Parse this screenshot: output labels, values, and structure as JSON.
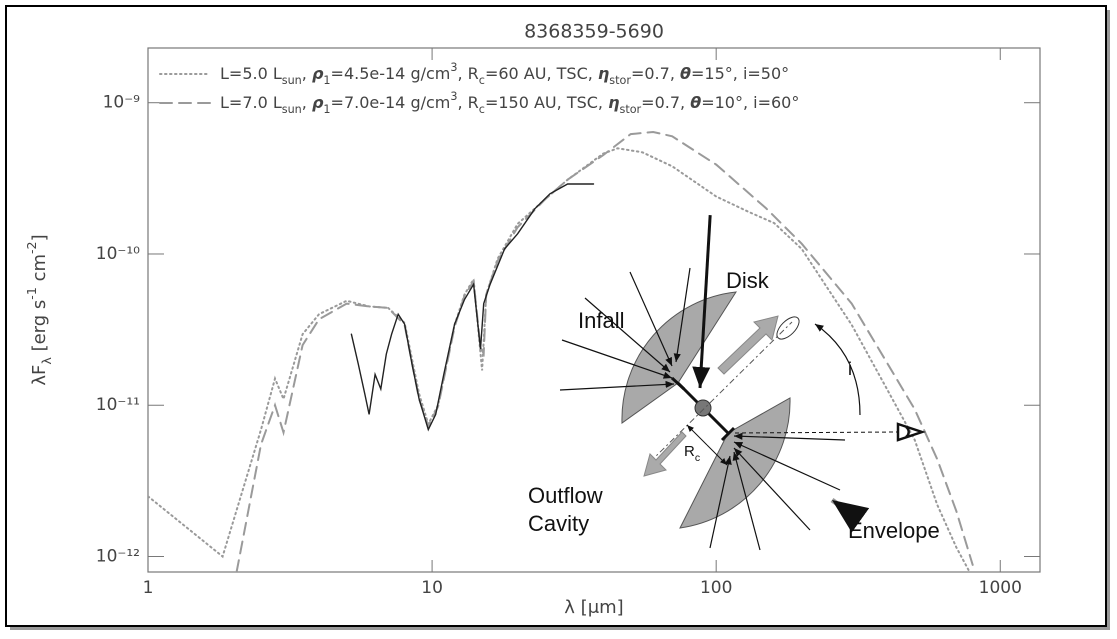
{
  "chart_data": {
    "type": "line",
    "title": "8368359-5690",
    "xlabel": "λ [μm]",
    "ylabel": [
      {
        "t": "λF"
      },
      {
        "t": "λ",
        "s": "sub"
      },
      {
        "t": " [erg s"
      },
      {
        "t": "-1",
        "s": "sup"
      },
      {
        "t": " cm"
      },
      {
        "t": "-2",
        "s": "sup"
      },
      {
        "t": "]"
      }
    ],
    "xscale": "log",
    "yscale": "log",
    "xlim": [
      1,
      1380
    ],
    "ylim": [
      7.9e-13,
      2.3e-09
    ],
    "xticks": [
      1,
      10,
      100,
      1000
    ],
    "yticks": [
      {
        "value": 1e-12,
        "label": "10⁻¹²"
      },
      {
        "value": 1e-11,
        "label": "10⁻¹¹"
      },
      {
        "value": 1e-10,
        "label": "10⁻¹⁰"
      },
      {
        "value": 1e-09,
        "label": "10⁻⁹"
      }
    ],
    "legend": "top-left",
    "series": [
      {
        "name": [
          {
            "t": "L=5.0 L"
          },
          {
            "t": "sun",
            "s": "sub"
          },
          {
            "t": ", "
          },
          {
            "t": "ρ",
            "s": "greek"
          },
          {
            "t": "1",
            "s": "sub"
          },
          {
            "t": "=4.5e-14 g/cm"
          },
          {
            "t": "3",
            "s": "sup"
          },
          {
            "t": ", R"
          },
          {
            "t": "c",
            "s": "sub"
          },
          {
            "t": "=60 AU, TSC, "
          },
          {
            "t": "η",
            "s": "greek"
          },
          {
            "t": "stor",
            "s": "sub"
          },
          {
            "t": "=0.7, "
          },
          {
            "t": "θ",
            "s": "greek"
          },
          {
            "t": "=15°, i=50°"
          }
        ],
        "color": "#9a9a9a",
        "dash": "dotted",
        "legend": true,
        "x": [
          1,
          1.83,
          2.5,
          2.8,
          3,
          3.5,
          4,
          5,
          6,
          7,
          8,
          9,
          9.7,
          10.5,
          12,
          13,
          14,
          14.8,
          15,
          15.5,
          17,
          20,
          25,
          30,
          40,
          45,
          55,
          70,
          100,
          130,
          160,
          200,
          300,
          400,
          500,
          600,
          700,
          780
        ],
        "values": [
          2.5e-12,
          1e-12,
          6.9e-12,
          1.5e-11,
          1.1e-11,
          2.95e-11,
          4e-11,
          4.9e-11,
          4.5e-11,
          4.4e-11,
          3.5e-11,
          1.19e-11,
          7.5e-12,
          1e-11,
          3.4e-11,
          5.4e-11,
          6.8e-11,
          2.2e-11,
          1.7e-11,
          5.4e-11,
          9.3e-11,
          1.58e-10,
          2.3e-10,
          3.1e-10,
          4.6e-10,
          5e-10,
          4.7e-10,
          3.8e-10,
          2.4e-10,
          1.9e-10,
          1.6e-10,
          1.08e-10,
          3.4e-11,
          1.27e-11,
          5.9e-12,
          2.2e-12,
          1.15e-12,
          7.9e-13
        ]
      },
      {
        "name": [
          {
            "t": "L=7.0 L"
          },
          {
            "t": "sun",
            "s": "sub"
          },
          {
            "t": ", "
          },
          {
            "t": "ρ",
            "s": "greek"
          },
          {
            "t": "1",
            "s": "sub"
          },
          {
            "t": "=7.0e-14 g/cm"
          },
          {
            "t": "3",
            "s": "sup"
          },
          {
            "t": ", R"
          },
          {
            "t": "c",
            "s": "sub"
          },
          {
            "t": "=150 AU, TSC, "
          },
          {
            "t": "η",
            "s": "greek"
          },
          {
            "t": "stor",
            "s": "sub"
          },
          {
            "t": "=0.7, "
          },
          {
            "t": "θ",
            "s": "greek"
          },
          {
            "t": "=10°, i=60°"
          }
        ],
        "color": "#9a9a9a",
        "dash": "dashed",
        "legend": true,
        "x": [
          2.05,
          2.5,
          2.8,
          3,
          3.5,
          4,
          5,
          6,
          7,
          8,
          9,
          9.7,
          10.5,
          12,
          13,
          14,
          14.8,
          15.2,
          15.5,
          17,
          20,
          25,
          30,
          40,
          50,
          60,
          70,
          100,
          150,
          200,
          300,
          400,
          500,
          600,
          700,
          800
        ],
        "values": [
          7.9e-13,
          5.5e-12,
          1e-11,
          6.6e-12,
          2.5e-11,
          3.7e-11,
          4.7e-11,
          4.5e-11,
          4.4e-11,
          3.4e-11,
          1.1e-11,
          7.3e-12,
          9.8e-12,
          3.3e-11,
          5.3e-11,
          6.6e-11,
          2.4e-11,
          2.2e-11,
          5.4e-11,
          9e-11,
          1.5e-10,
          2.3e-10,
          3.1e-10,
          4.5e-10,
          6.2e-10,
          6.4e-10,
          6e-10,
          3.9e-10,
          2e-10,
          1.17e-10,
          4.7e-11,
          1.9e-11,
          9.4e-12,
          4.4e-12,
          2e-12,
          8.8e-13
        ]
      },
      {
        "color": "#222222",
        "dash": "solid",
        "legend": false,
        "x": [
          5.2,
          5.5,
          5.8,
          6.0,
          6.3,
          6.6,
          6.9,
          7.2,
          7.6,
          8,
          8.5,
          9,
          9.7,
          10.3,
          11,
          12,
          13,
          14,
          14.8,
          15.2,
          16,
          18,
          20,
          23,
          26,
          30,
          34,
          37
        ],
        "values": [
          2.95e-11,
          1.87e-11,
          1.18e-11,
          8.7e-12,
          1.6e-11,
          1.28e-11,
          2.18e-11,
          2.95e-11,
          4e-11,
          3.44e-11,
          1.87e-11,
          1.1e-11,
          6.9e-12,
          8.7e-12,
          1.6e-11,
          3.44e-11,
          5e-11,
          6.3e-11,
          2.35e-11,
          4.7e-11,
          6.3e-11,
          1.08e-10,
          1.36e-10,
          1.99e-10,
          2.5e-10,
          2.9e-10,
          2.9e-10,
          2.9e-10
        ]
      }
    ]
  },
  "diagram": {
    "infall": "Infall",
    "disk": "Disk",
    "inclination": "i",
    "radius": [
      {
        "t": "R"
      },
      {
        "t": "c",
        "s": "sub"
      }
    ],
    "outflow": [
      "Outflow",
      "Cavity"
    ],
    "envelope": "Envelope"
  }
}
